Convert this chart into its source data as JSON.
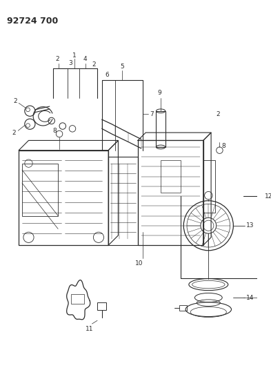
{
  "title": "92724 700",
  "bg_color": "#ffffff",
  "line_color": "#2a2a2a",
  "title_fontsize": 9,
  "label_fontsize": 6.5,
  "fig_width": 3.93,
  "fig_height": 5.33,
  "dpi": 100
}
